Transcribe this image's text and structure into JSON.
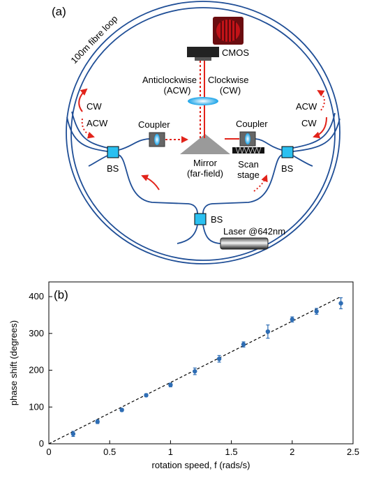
{
  "panel_a": {
    "label": "(a)",
    "fibre_label": "100m fibre loop",
    "cmos_label": "CMOS",
    "acw_label_1": "Anticlockwise",
    "acw_label_2": "(ACW)",
    "cw_label_1": "Clockwise",
    "cw_label_2": "(CW)",
    "left_cw": "CW",
    "left_acw": "ACW",
    "right_acw": "ACW",
    "right_cw": "CW",
    "coupler_left": "Coupler",
    "coupler_right": "Coupler",
    "mirror_1": "Mirror",
    "mirror_2": "(far-field)",
    "scan_1": "Scan",
    "scan_2": "stage",
    "bs_left": "BS",
    "bs_right": "BS",
    "bs_bottom": "BS",
    "laser": "Laser @642nm",
    "colors": {
      "fibre": "#1f4e96",
      "beam": "#e2231a",
      "bs": "#2bc0f0"
    }
  },
  "panel_b": {
    "label": "(b)"
  },
  "chart_data": {
    "type": "scatter",
    "xlabel": "rotation speed, f (rads/s)",
    "ylabel": "phase shift (degrees)",
    "xlim": [
      0,
      2.5
    ],
    "ylim": [
      0,
      440
    ],
    "x_ticks": [
      "0",
      "0.5",
      "1",
      "1.5",
      "2",
      "2.5"
    ],
    "y_ticks": [
      "0",
      "100",
      "200",
      "300",
      "400"
    ],
    "grid": false,
    "series": [
      {
        "x": [
          0.2,
          0.4,
          0.6,
          0.8,
          1.0,
          1.2,
          1.4,
          1.6,
          1.8,
          2.0,
          2.2,
          2.4
        ],
        "y": [
          27,
          60,
          92,
          132,
          160,
          197,
          231,
          270,
          305,
          338,
          360,
          382
        ],
        "yerr": [
          7,
          5,
          4,
          4,
          5,
          9,
          9,
          7,
          18,
          7,
          8,
          15
        ],
        "color": "#2e6db4"
      }
    ],
    "fit_line": {
      "x": [
        0,
        2.4
      ],
      "y": [
        0,
        400
      ],
      "style": "dashed"
    }
  }
}
